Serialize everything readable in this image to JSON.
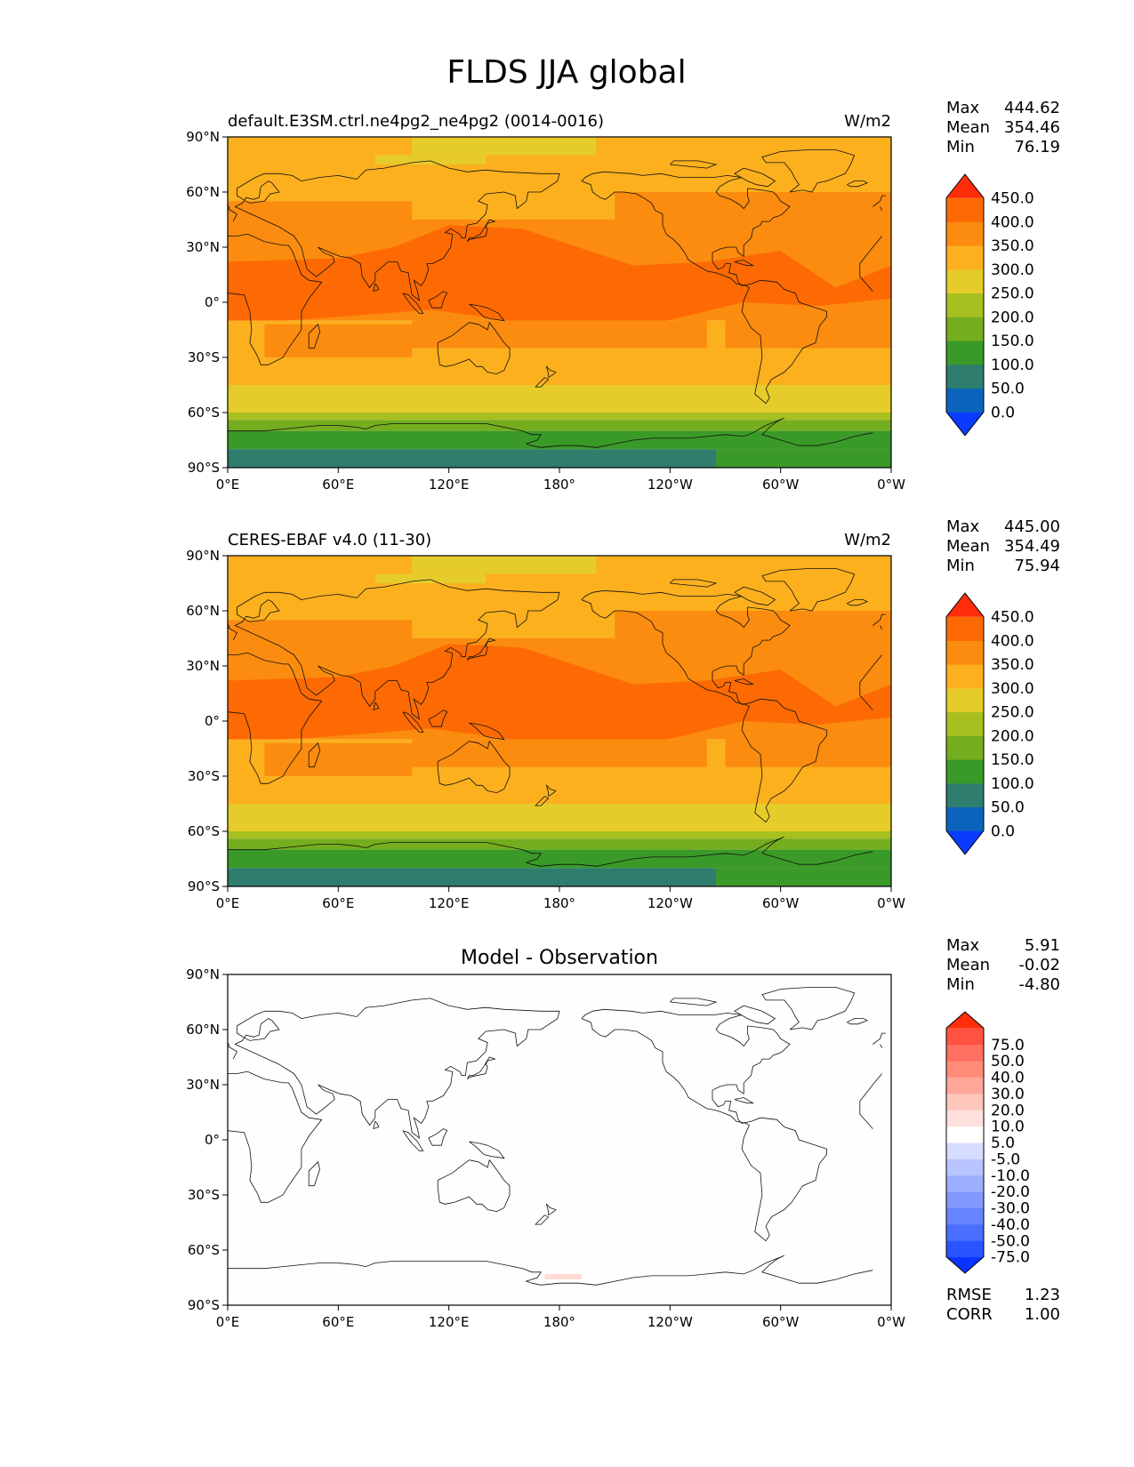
{
  "figure": {
    "title": "FLDS JJA global"
  },
  "axes": {
    "lat_ticks": [
      "90°N",
      "60°N",
      "30°N",
      "0°",
      "30°S",
      "60°S",
      "90°S"
    ],
    "lon_ticks": [
      "0°E",
      "60°E",
      "120°E",
      "180°",
      "120°W",
      "60°W",
      "0°W"
    ]
  },
  "panels": [
    {
      "title_left": "default.E3SM.ctrl.ne4pg2_ne4pg2 (0014-0016)",
      "title_center": "",
      "units": "W/m2",
      "stats": [
        {
          "label": "Max",
          "value": "444.62"
        },
        {
          "label": "Mean",
          "value": "354.46"
        },
        {
          "label": "Min",
          "value": "76.19"
        }
      ],
      "colorbar": {
        "colors": [
          "#0a3cff",
          "#0a64be",
          "#2e7d6d",
          "#3a9a28",
          "#74ad1e",
          "#a8bf20",
          "#e6cc2a",
          "#fcb01e",
          "#fb8c0f",
          "#fd6a03",
          "#ff2d0a"
        ],
        "labels": [
          "0.0",
          "50.0",
          "100.0",
          "150.0",
          "200.0",
          "250.0",
          "300.0",
          "350.0",
          "400.0",
          "450.0"
        ]
      },
      "extra_stats": []
    },
    {
      "title_left": "CERES-EBAF v4.0 (11-30)",
      "title_center": "",
      "units": "W/m2",
      "stats": [
        {
          "label": "Max",
          "value": "445.00"
        },
        {
          "label": "Mean",
          "value": "354.49"
        },
        {
          "label": "Min",
          "value": "75.94"
        }
      ],
      "colorbar": {
        "colors": [
          "#0a3cff",
          "#0a64be",
          "#2e7d6d",
          "#3a9a28",
          "#74ad1e",
          "#a8bf20",
          "#e6cc2a",
          "#fcb01e",
          "#fb8c0f",
          "#fd6a03",
          "#ff2d0a"
        ],
        "labels": [
          "0.0",
          "50.0",
          "100.0",
          "150.0",
          "200.0",
          "250.0",
          "300.0",
          "350.0",
          "400.0",
          "450.0"
        ]
      },
      "extra_stats": []
    },
    {
      "title_left": "",
      "title_center": "Model - Observation",
      "units": "",
      "stats": [
        {
          "label": "Max",
          "value": "5.91"
        },
        {
          "label": "Mean",
          "value": "-0.02"
        },
        {
          "label": "Min",
          "value": "-4.80"
        }
      ],
      "colorbar": {
        "colors": [
          "#0a33ff",
          "#2a54ff",
          "#4a6eff",
          "#6684ff",
          "#8298ff",
          "#9eaeff",
          "#b8c4ff",
          "#d6ddff",
          "#ffffff",
          "#ffe0dc",
          "#ffc6bc",
          "#ffa89a",
          "#ff8c78",
          "#ff7060",
          "#ff5240",
          "#ff2d0a"
        ],
        "labels": [
          "-75.0",
          "-50.0",
          "-40.0",
          "-30.0",
          "-20.0",
          "-10.0",
          "-5.0",
          "5.0",
          "10.0",
          "20.0",
          "30.0",
          "40.0",
          "50.0",
          "75.0"
        ]
      },
      "extra_stats": [
        {
          "label": "RMSE",
          "value": "1.23"
        },
        {
          "label": "CORR",
          "value": "1.00"
        }
      ]
    }
  ],
  "colors": {
    "warm_band": "#fcb01e",
    "hot_band": "#fd6a03",
    "mid_band": "#fb8c0f",
    "cool_band": "#e6cc2a",
    "diff_background": "#fefefe",
    "diff_patch": "#ffdcd6"
  }
}
